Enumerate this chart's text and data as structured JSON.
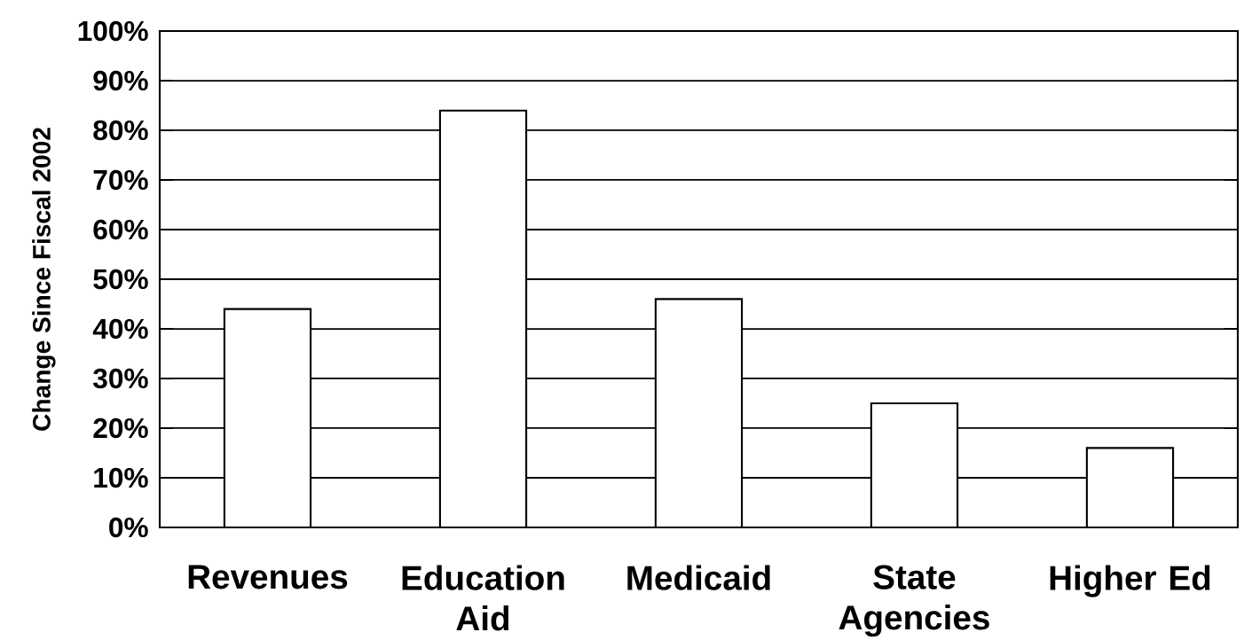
{
  "chart_data": {
    "type": "bar",
    "ylabel": "Change Since Fiscal 2002",
    "categories": [
      "Revenues",
      "Education Aid",
      "Medicaid",
      "State Agencies",
      "Higher Ed"
    ],
    "values": [
      44,
      84,
      46,
      25,
      16
    ],
    "color": "#ffffff",
    "ylim": [
      0,
      100
    ],
    "yticks": [
      {
        "value": 0,
        "label": "0%"
      },
      {
        "value": 10,
        "label": "10%"
      },
      {
        "value": 20,
        "label": "20%"
      },
      {
        "value": 30,
        "label": "30%"
      },
      {
        "value": 40,
        "label": "40%"
      },
      {
        "value": 50,
        "label": "50%"
      },
      {
        "value": 60,
        "label": "60%"
      },
      {
        "value": 70,
        "label": "70%"
      },
      {
        "value": 80,
        "label": "80%"
      },
      {
        "value": 90,
        "label": "90%"
      },
      {
        "value": 100,
        "label": "100%"
      }
    ],
    "grid": "y"
  }
}
